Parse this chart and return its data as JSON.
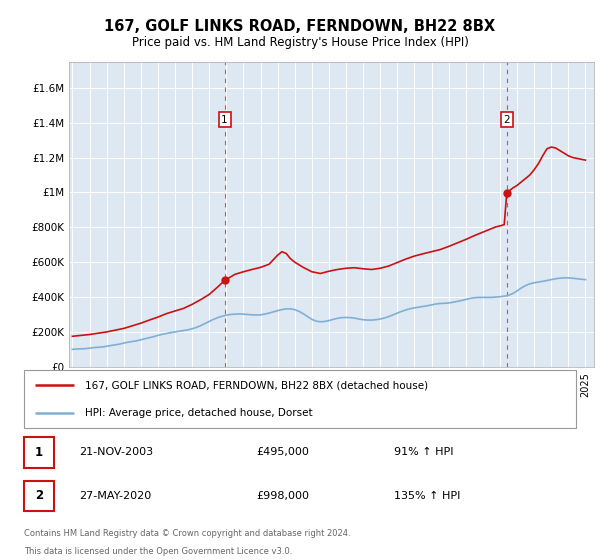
{
  "title": "167, GOLF LINKS ROAD, FERNDOWN, BH22 8BX",
  "subtitle": "Price paid vs. HM Land Registry's House Price Index (HPI)",
  "legend_line1": "167, GOLF LINKS ROAD, FERNDOWN, BH22 8BX (detached house)",
  "legend_line2": "HPI: Average price, detached house, Dorset",
  "annotation1": {
    "label": "1",
    "date": "21-NOV-2003",
    "price": 495000,
    "hpi": "91% ↑ HPI",
    "x_year": 2003.9
  },
  "annotation2": {
    "label": "2",
    "date": "27-MAY-2020",
    "price": 998000,
    "hpi": "135% ↑ HPI",
    "x_year": 2020.4
  },
  "footer_line1": "Contains HM Land Registry data © Crown copyright and database right 2024.",
  "footer_line2": "This data is licensed under the Open Government Licence v3.0.",
  "hpi_color": "#7fb0d4",
  "price_color": "#cc1111",
  "background_color": "#dde8f3",
  "ylim_max": 1750000,
  "yticks": [
    0,
    200000,
    400000,
    600000,
    800000,
    1000000,
    1200000,
    1400000,
    1600000
  ],
  "ytick_labels": [
    "£0",
    "£200K",
    "£400K",
    "£600K",
    "£800K",
    "£1M",
    "£1.2M",
    "£1.4M",
    "£1.6M"
  ],
  "hpi_years": [
    1995.0,
    1995.25,
    1995.5,
    1995.75,
    1996.0,
    1996.25,
    1996.5,
    1996.75,
    1997.0,
    1997.25,
    1997.5,
    1997.75,
    1998.0,
    1998.25,
    1998.5,
    1998.75,
    1999.0,
    1999.25,
    1999.5,
    1999.75,
    2000.0,
    2000.25,
    2000.5,
    2000.75,
    2001.0,
    2001.25,
    2001.5,
    2001.75,
    2002.0,
    2002.25,
    2002.5,
    2002.75,
    2003.0,
    2003.25,
    2003.5,
    2003.75,
    2004.0,
    2004.25,
    2004.5,
    2004.75,
    2005.0,
    2005.25,
    2005.5,
    2005.75,
    2006.0,
    2006.25,
    2006.5,
    2006.75,
    2007.0,
    2007.25,
    2007.5,
    2007.75,
    2008.0,
    2008.25,
    2008.5,
    2008.75,
    2009.0,
    2009.25,
    2009.5,
    2009.75,
    2010.0,
    2010.25,
    2010.5,
    2010.75,
    2011.0,
    2011.25,
    2011.5,
    2011.75,
    2012.0,
    2012.25,
    2012.5,
    2012.75,
    2013.0,
    2013.25,
    2013.5,
    2013.75,
    2014.0,
    2014.25,
    2014.5,
    2014.75,
    2015.0,
    2015.25,
    2015.5,
    2015.75,
    2016.0,
    2016.25,
    2016.5,
    2016.75,
    2017.0,
    2017.25,
    2017.5,
    2017.75,
    2018.0,
    2018.25,
    2018.5,
    2018.75,
    2019.0,
    2019.25,
    2019.5,
    2019.75,
    2020.0,
    2020.25,
    2020.5,
    2020.75,
    2021.0,
    2021.25,
    2021.5,
    2021.75,
    2022.0,
    2022.25,
    2022.5,
    2022.75,
    2023.0,
    2023.25,
    2023.5,
    2023.75,
    2024.0,
    2024.25,
    2024.5,
    2024.75,
    2025.0
  ],
  "hpi_values": [
    100000,
    102000,
    103000,
    104000,
    107000,
    110000,
    112000,
    114000,
    118000,
    122000,
    126000,
    130000,
    136000,
    141000,
    145000,
    149000,
    155000,
    161000,
    167000,
    173000,
    180000,
    186000,
    191000,
    196000,
    200000,
    204000,
    208000,
    212000,
    218000,
    226000,
    236000,
    248000,
    260000,
    272000,
    282000,
    290000,
    296000,
    300000,
    302000,
    303000,
    302000,
    300000,
    298000,
    297000,
    298000,
    302000,
    308000,
    315000,
    322000,
    328000,
    332000,
    332000,
    328000,
    318000,
    304000,
    288000,
    272000,
    262000,
    258000,
    260000,
    265000,
    272000,
    278000,
    282000,
    283000,
    282000,
    279000,
    274000,
    270000,
    268000,
    268000,
    270000,
    274000,
    280000,
    288000,
    298000,
    308000,
    318000,
    326000,
    333000,
    338000,
    342000,
    346000,
    350000,
    355000,
    360000,
    363000,
    364000,
    366000,
    370000,
    375000,
    380000,
    386000,
    392000,
    396000,
    398000,
    398000,
    398000,
    398000,
    400000,
    402000,
    405000,
    410000,
    420000,
    435000,
    452000,
    466000,
    476000,
    482000,
    486000,
    490000,
    495000,
    500000,
    505000,
    508000,
    510000,
    510000,
    508000,
    505000,
    502000,
    500000
  ],
  "price_years": [
    1995.0,
    1996.0,
    1997.0,
    1997.5,
    1998.0,
    1998.5,
    1999.0,
    1999.5,
    2000.0,
    2000.5,
    2001.0,
    2001.5,
    2002.0,
    2002.5,
    2003.0,
    2003.5,
    2003.9,
    2004.5,
    2005.0,
    2005.5,
    2006.0,
    2006.5,
    2007.0,
    2007.25,
    2007.5,
    2007.75,
    2008.0,
    2008.5,
    2009.0,
    2009.5,
    2010.0,
    2010.5,
    2011.0,
    2011.5,
    2012.0,
    2012.5,
    2013.0,
    2013.5,
    2014.0,
    2014.5,
    2015.0,
    2015.5,
    2016.0,
    2016.5,
    2017.0,
    2017.5,
    2018.0,
    2018.5,
    2019.0,
    2019.5,
    2019.75,
    2020.0,
    2020.25,
    2020.4,
    2020.75,
    2021.0,
    2021.25,
    2021.5,
    2021.75,
    2022.0,
    2022.25,
    2022.5,
    2022.75,
    2023.0,
    2023.25,
    2023.5,
    2023.75,
    2024.0,
    2024.25,
    2024.5,
    2024.75,
    2025.0
  ],
  "price_values": [
    175000,
    185000,
    200000,
    210000,
    220000,
    235000,
    250000,
    268000,
    285000,
    305000,
    320000,
    335000,
    358000,
    385000,
    415000,
    458000,
    495000,
    530000,
    545000,
    558000,
    570000,
    588000,
    640000,
    660000,
    650000,
    620000,
    600000,
    570000,
    545000,
    535000,
    548000,
    558000,
    565000,
    568000,
    562000,
    558000,
    565000,
    578000,
    598000,
    618000,
    635000,
    648000,
    660000,
    672000,
    690000,
    710000,
    730000,
    752000,
    772000,
    792000,
    802000,
    808000,
    815000,
    998000,
    1025000,
    1040000,
    1060000,
    1080000,
    1100000,
    1130000,
    1165000,
    1210000,
    1250000,
    1260000,
    1255000,
    1240000,
    1225000,
    1210000,
    1200000,
    1195000,
    1190000,
    1185000
  ],
  "xmin": 1994.8,
  "xmax": 2025.5
}
